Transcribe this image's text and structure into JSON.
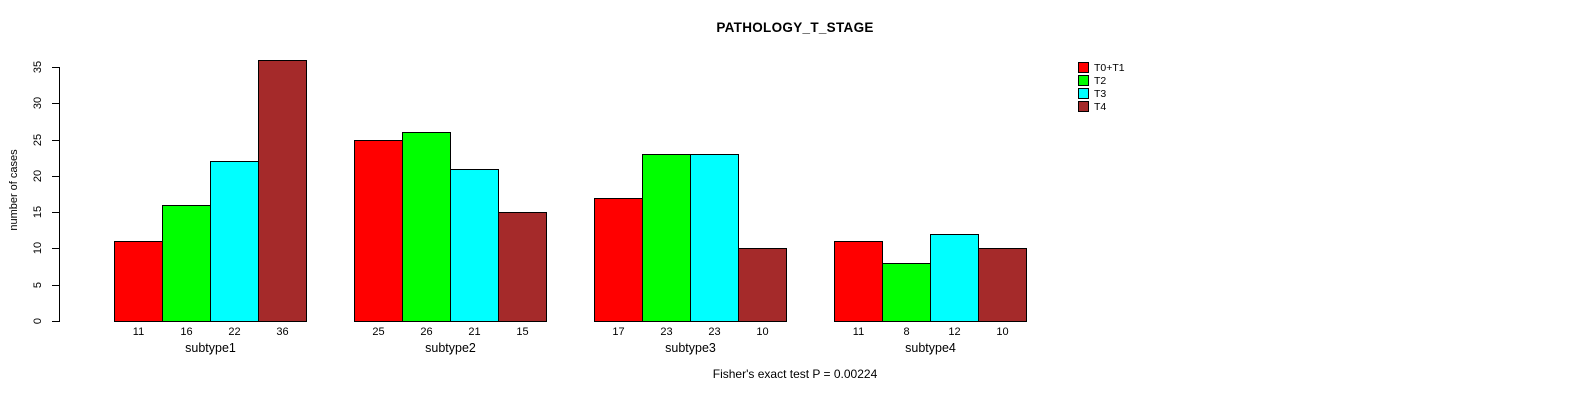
{
  "title": "PATHOLOGY_T_STAGE",
  "footer": "Fisher's exact test P = 0.00224",
  "chart_data": {
    "type": "bar",
    "title": "PATHOLOGY_T_STAGE",
    "ylabel": "number of cases",
    "xlabel": "",
    "categories": [
      "subtype1",
      "subtype2",
      "subtype3",
      "subtype4"
    ],
    "series": [
      {
        "name": "T0+T1",
        "color": "#FF0000",
        "values": [
          11,
          25,
          17,
          11
        ]
      },
      {
        "name": "T2",
        "color": "#00FF00",
        "values": [
          16,
          26,
          23,
          8
        ]
      },
      {
        "name": "T3",
        "color": "#00FFFF",
        "values": [
          22,
          21,
          23,
          12
        ]
      },
      {
        "name": "T4",
        "color": "#A52A2A",
        "values": [
          36,
          15,
          10,
          10
        ]
      }
    ],
    "bar_value_labels": {
      "subtype1": [
        11,
        16,
        22,
        36
      ],
      "subtype2": [
        25,
        26,
        21,
        15
      ],
      "subtype3": [
        17,
        23,
        23,
        10
      ],
      "subtype4": [
        11,
        8,
        12,
        10
      ]
    },
    "yticks": [
      0,
      5,
      10,
      15,
      20,
      25,
      30,
      35
    ],
    "ylim": [
      0,
      36
    ],
    "grid": false,
    "legend_position": "top-right",
    "legend_entries": [
      "T0+T1",
      "T2",
      "T3",
      "T4"
    ],
    "annotation": "Fisher's exact test P = 0.00224"
  }
}
